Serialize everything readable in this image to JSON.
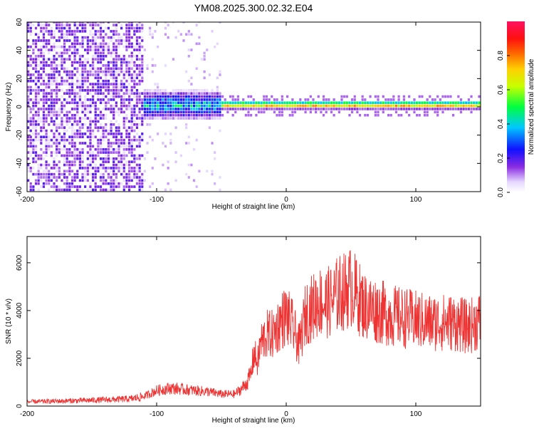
{
  "title": "YM08.2025.300.02.32.E04",
  "chart_data": [
    {
      "type": "heatmap",
      "xlabel": "Height of straight line (km)",
      "ylabel": "Frequency (Hz)",
      "xlim": [
        -200,
        150
      ],
      "ylim": [
        -60,
        60
      ],
      "xticks": [
        -200,
        -100,
        0,
        100
      ],
      "yticks": [
        -60,
        -40,
        -20,
        0,
        20,
        40,
        60
      ],
      "colorbar": {
        "label": "Normalized spectral amplitude",
        "range": [
          0.0,
          1.0
        ],
        "ticks": [
          0.0,
          0.2,
          0.4,
          0.6,
          0.8
        ]
      },
      "regions": [
        {
          "x_range": [
            -200,
            -110
          ],
          "description_level": "broadband noise, amplitude ~0.1-0.2 across all frequencies"
        },
        {
          "x_range": [
            -110,
            -50
          ],
          "band_center_hz": 0,
          "band_halfwidth_hz": 12,
          "peak_amplitude": 0.45
        },
        {
          "x_range": [
            -50,
            150
          ],
          "band_center_hz": 0,
          "band_halfwidth_hz": 3,
          "peak_amplitude": 0.95
        }
      ]
    },
    {
      "type": "line",
      "xlabel": "Height of straight line (km)",
      "ylabel": "SNR (10 * v/v)",
      "xlim": [
        -200,
        150
      ],
      "ylim": [
        0,
        7100
      ],
      "xticks": [
        -200,
        -100,
        0,
        100
      ],
      "yticks": [
        0,
        2000,
        4000,
        6000
      ],
      "color": "#ee3333",
      "series": [
        {
          "name": "SNR",
          "x": [
            -200,
            -180,
            -160,
            -140,
            -120,
            -110,
            -100,
            -90,
            -80,
            -70,
            -60,
            -50,
            -40,
            -35,
            -30,
            -27,
            -25,
            -22,
            -20,
            -15,
            -10,
            -5,
            0,
            5,
            10,
            15,
            20,
            25,
            30,
            35,
            40,
            45,
            50,
            55,
            60,
            70,
            80,
            90,
            100,
            110,
            120,
            130,
            140,
            150
          ],
          "values": [
            180,
            200,
            230,
            260,
            300,
            400,
            650,
            750,
            700,
            650,
            600,
            500,
            500,
            700,
            1000,
            1400,
            2200,
            1800,
            2600,
            3000,
            3000,
            3500,
            3800,
            3300,
            2500,
            3900,
            4100,
            4400,
            4300,
            4400,
            4700,
            4800,
            5000,
            4600,
            4200,
            4000,
            3800,
            3700,
            3600,
            3500,
            3500,
            3500,
            3300,
            3600
          ]
        }
      ]
    }
  ]
}
